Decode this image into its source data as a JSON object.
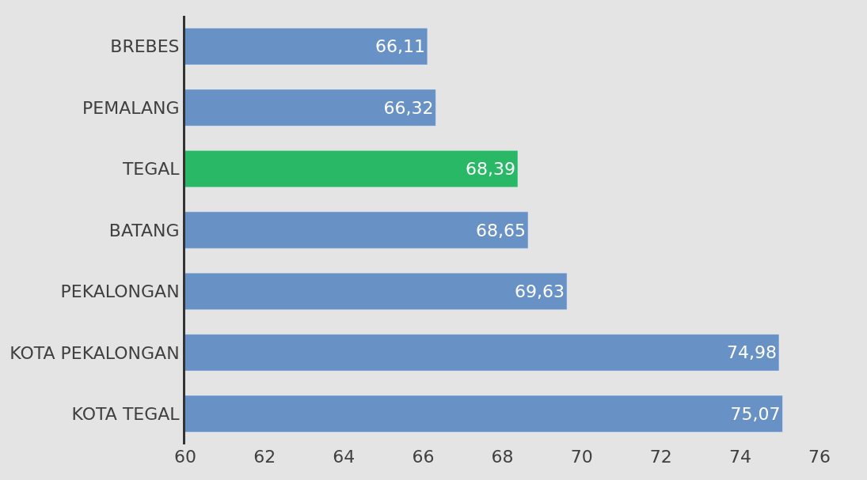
{
  "chart_data": {
    "type": "bar",
    "orientation": "horizontal",
    "categories": [
      "BREBES",
      "PEMALANG",
      "TEGAL",
      "BATANG",
      "PEKALONGAN",
      "KOTA PEKALONGAN",
      "KOTA TEGAL"
    ],
    "values": [
      66.11,
      66.32,
      68.39,
      68.65,
      69.63,
      74.98,
      75.07
    ],
    "value_labels": [
      "66,11",
      "66,32",
      "68,39",
      "68,65",
      "69,63",
      "74,98",
      "75,07"
    ],
    "colors": [
      "#6891c6",
      "#6891c6",
      "#29b866",
      "#6891c6",
      "#6891c6",
      "#6891c6",
      "#6891c6"
    ],
    "xlim": [
      60,
      76
    ],
    "xticks": [
      60,
      62,
      64,
      66,
      68,
      70,
      72,
      74,
      76
    ],
    "grid": false,
    "legend": false
  }
}
